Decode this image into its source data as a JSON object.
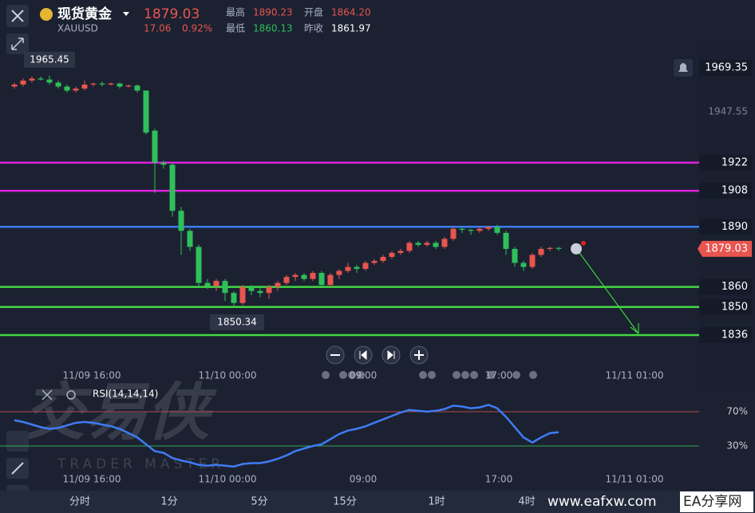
{
  "header": {
    "title": "现货黄金",
    "symbol": "XAUUSD",
    "price": "1879.03",
    "change": "17.06",
    "change_pct": "0.92%",
    "high_label": "最高",
    "high": "1890.23",
    "open_label": "开盘",
    "open": "1864.20",
    "low_label": "最低",
    "low": "1860.13",
    "prev_label": "昨收",
    "prev": "1861.97"
  },
  "chart_data": [
    {
      "type": "candlestick",
      "up_color": "#e8554e",
      "down_color": "#2fbf5a",
      "open": [
        1960,
        1961,
        1963,
        1964,
        1963.5,
        1962,
        1960,
        1958,
        1959,
        1961,
        1961.5,
        1961,
        1961.5,
        1960,
        1960.5,
        1958,
        1938,
        1922,
        1921,
        1898,
        1888,
        1880,
        1862,
        1860.5,
        1863,
        1857,
        1852,
        1860,
        1858,
        1857,
        1860,
        1862,
        1865,
        1866,
        1864,
        1867,
        1861,
        1866,
        1868,
        1870,
        1869,
        1872,
        1873,
        1875,
        1877,
        1878,
        1882,
        1881,
        1882,
        1880,
        1884,
        1889,
        1888.5,
        1888,
        1889,
        1890,
        1887,
        1879,
        1872,
        1870,
        1876,
        1879,
        1879.5
      ],
      "high": [
        1962,
        1964,
        1965,
        1965,
        1965.45,
        1963,
        1961,
        1960,
        1963,
        1962,
        1962.5,
        1962,
        1962,
        1961,
        1961,
        1958,
        1939,
        1923,
        1922,
        1900,
        1889,
        1881,
        1864,
        1864,
        1864,
        1858,
        1861,
        1861,
        1860,
        1861,
        1863,
        1866,
        1867,
        1867,
        1868,
        1868,
        1867,
        1869,
        1872,
        1871,
        1873,
        1874,
        1876,
        1878,
        1879,
        1883,
        1883,
        1883,
        1883,
        1885,
        1890,
        1890,
        1889,
        1890,
        1890.23,
        1891,
        1888,
        1880,
        1873,
        1877,
        1880,
        1880,
        1880
      ],
      "low": [
        1959,
        1960,
        1962,
        1963,
        1961,
        1959,
        1957,
        1957,
        1958,
        1960,
        1960,
        1960.5,
        1959,
        1959.5,
        1957,
        1936,
        1907,
        1919,
        1895,
        1876,
        1878,
        1860,
        1859,
        1858,
        1853,
        1850.34,
        1851,
        1856,
        1855,
        1854,
        1858,
        1861,
        1863,
        1863,
        1863,
        1860,
        1860,
        1864,
        1867,
        1867,
        1868,
        1871,
        1872,
        1874,
        1876,
        1877,
        1880,
        1880,
        1879,
        1879,
        1883,
        1887,
        1886,
        1887,
        1888,
        1886,
        1876,
        1870,
        1868,
        1869,
        1875,
        1878,
        1878
      ],
      "close": [
        1961,
        1963,
        1964,
        1963.5,
        1962,
        1960,
        1958,
        1959,
        1961,
        1961.5,
        1961,
        1961.5,
        1960,
        1960.5,
        1958,
        1937,
        1922,
        1921,
        1898,
        1888,
        1880,
        1862,
        1860.5,
        1863,
        1857,
        1852,
        1860,
        1858,
        1857,
        1860,
        1862,
        1865,
        1866,
        1864,
        1867,
        1861,
        1866,
        1868,
        1870,
        1869,
        1872,
        1873,
        1875,
        1877,
        1878,
        1882,
        1881,
        1882,
        1880,
        1884,
        1889,
        1888.5,
        1888,
        1889,
        1890,
        1887,
        1879,
        1872,
        1870,
        1876,
        1879,
        1879.5,
        1879.03
      ],
      "ylim": [
        1832,
        1979.3
      ],
      "yticks": [
        1969.35,
        1947.55
      ],
      "levels": [
        {
          "value": 1922,
          "color": "#e020e0"
        },
        {
          "value": 1908,
          "color": "#e020e0"
        },
        {
          "value": 1890,
          "color": "#3b7df0"
        },
        {
          "value": 1860,
          "color": "#43d843"
        },
        {
          "value": 1850,
          "color": "#43d843"
        },
        {
          "value": 1836,
          "color": "#43d843"
        }
      ],
      "max_marker": 1965.45,
      "min_marker": 1850.34,
      "last_price": 1879.03,
      "x_labels": [
        "11/09 16:00",
        "11/10 00:00",
        "09:00",
        "17:00",
        "11/11 01:00"
      ]
    },
    {
      "type": "line",
      "title": "RSI(14,14,14)",
      "ylim": [
        0,
        100
      ],
      "yticks": [
        {
          "value": 70,
          "label": "70%",
          "color": "#b9474a"
        },
        {
          "value": 30,
          "label": "30%",
          "color": "#36a856"
        }
      ],
      "series": [
        {
          "color": "#3f7cf4",
          "values": [
            60,
            58,
            55,
            52,
            50,
            51,
            54,
            57,
            58,
            57,
            55,
            53,
            50,
            45,
            40,
            32,
            24,
            22,
            16,
            13,
            11,
            8,
            7,
            8,
            7,
            6,
            9,
            10,
            10,
            12,
            15,
            19,
            24,
            27,
            30,
            32,
            38,
            44,
            48,
            50,
            53,
            57,
            61,
            65,
            69,
            72,
            71,
            70,
            71,
            73,
            77,
            76,
            74,
            75,
            78,
            74,
            64,
            52,
            40,
            34,
            40,
            45,
            46
          ]
        }
      ],
      "x_labels": [
        "11/09 16:00",
        "11/10 00:00",
        "09:00",
        "17:00",
        "11/11 01:00"
      ]
    }
  ],
  "tabs": [
    "分时",
    "1分",
    "5分",
    "15分",
    "1时",
    "4时"
  ],
  "watermark": {
    "name": "交易侠",
    "sub": "TRADER MASTER"
  },
  "footer": {
    "url": "www.eafxw.com",
    "site": "EA分享网"
  }
}
